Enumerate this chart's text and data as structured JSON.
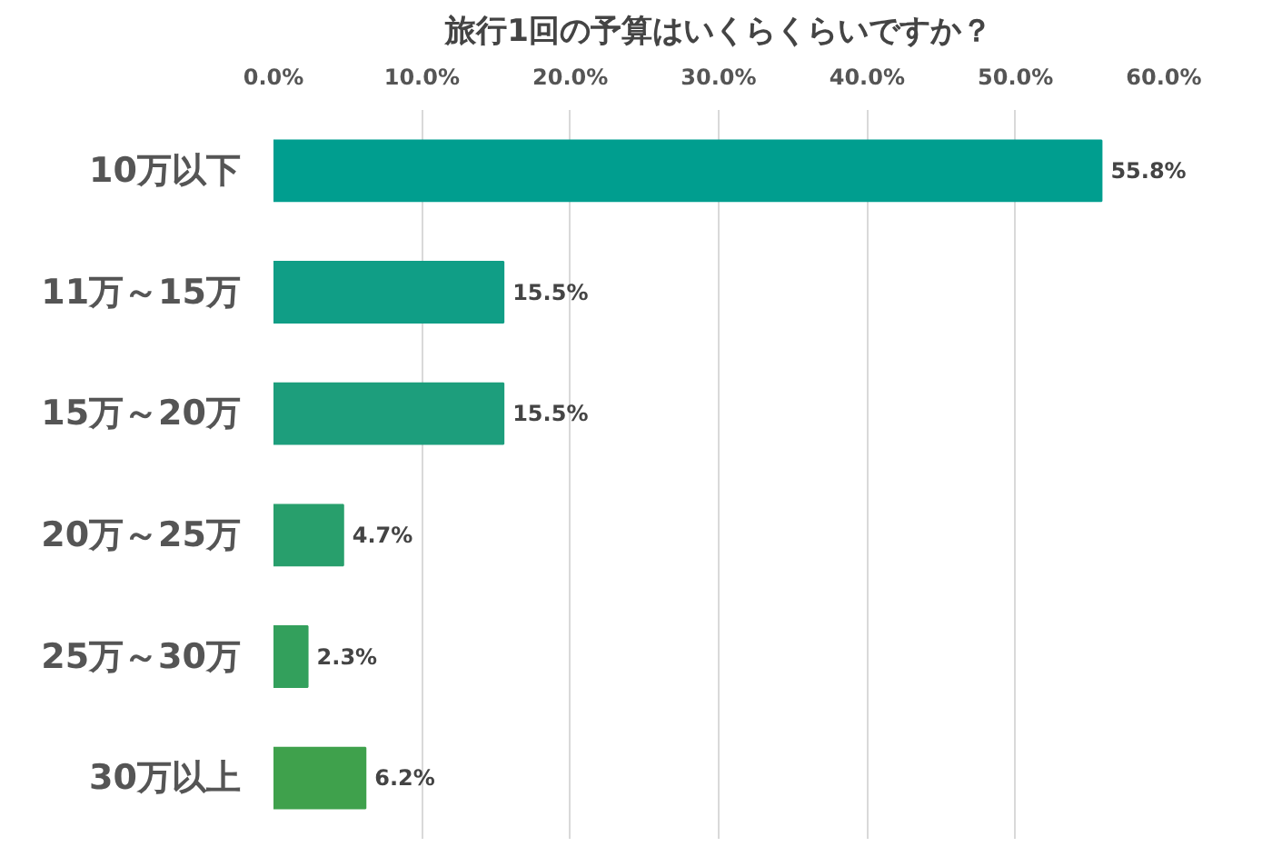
{
  "chart_data": {
    "type": "bar",
    "orientation": "horizontal",
    "title": "旅行1回の予算はいくらくらいですか？",
    "categories": [
      "10万以下",
      "11万～15万",
      "15万～20万",
      "20万～25万",
      "25万～30万",
      "30万以上"
    ],
    "values": [
      55.8,
      15.5,
      15.5,
      4.7,
      2.3,
      6.2
    ],
    "colors": [
      "#009e8f",
      "#109e86",
      "#1d9e7c",
      "#289f6c",
      "#33a05c",
      "#3fa14c"
    ],
    "value_labels": [
      "55.8%",
      "15.5%",
      "15.5%",
      "4.7%",
      "2.3%",
      "6.2%"
    ],
    "xlim": [
      0,
      60
    ],
    "xticks": [
      {
        "value": 0,
        "label": "0.0%"
      },
      {
        "value": 10,
        "label": "10.0%"
      },
      {
        "value": 20,
        "label": "20.0%"
      },
      {
        "value": 30,
        "label": "30.0%"
      },
      {
        "value": 40,
        "label": "40.0%"
      },
      {
        "value": 50,
        "label": "50.0%"
      },
      {
        "value": 60,
        "label": "60.0%"
      }
    ],
    "grid": "x"
  }
}
